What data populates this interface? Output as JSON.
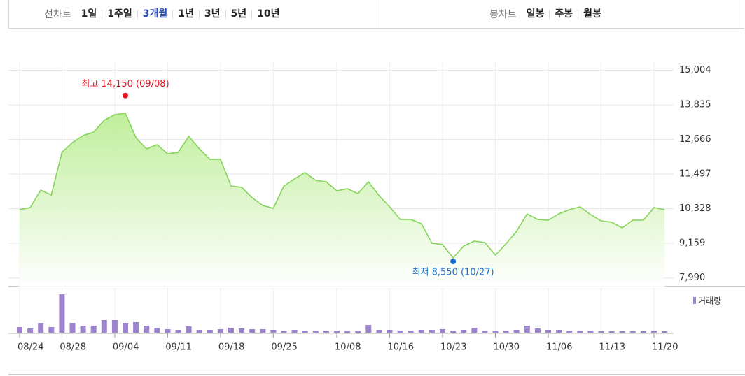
{
  "tabs": {
    "line_label": "선차트",
    "line_periods": [
      "1일",
      "1주일",
      "3개월",
      "1년",
      "3년",
      "5년",
      "10년"
    ],
    "selected_index": 2,
    "candle_label": "봉차트",
    "candle_periods": [
      "일봉",
      "주봉",
      "월봉"
    ]
  },
  "chart_data": {
    "type": "line",
    "color": "#84d45a",
    "fill": "#c9f1a9",
    "x": [
      "08/24",
      null,
      null,
      null,
      "08/28",
      null,
      null,
      null,
      null,
      "09/04",
      null,
      null,
      null,
      null,
      "09/11",
      null,
      null,
      null,
      null,
      "09/18",
      null,
      null,
      null,
      null,
      "09/25",
      null,
      null,
      null,
      null,
      null,
      "10/08",
      null,
      null,
      null,
      null,
      "10/16",
      null,
      null,
      null,
      null,
      "10/23",
      null,
      null,
      null,
      null,
      "10/30",
      null,
      null,
      null,
      null,
      "11/06",
      null,
      null,
      null,
      null,
      "11/13",
      null,
      null,
      null,
      null,
      "11/20",
      null
    ],
    "values": [
      10297,
      10368,
      10958,
      10793,
      12232,
      12562,
      12798,
      12916,
      13318,
      13506,
      13554,
      12728,
      12350,
      12492,
      12185,
      12232,
      12775,
      12350,
      11996,
      11996,
      11099,
      11052,
      10698,
      10438,
      10344,
      11099,
      11335,
      11548,
      11288,
      11241,
      10934,
      11005,
      10840,
      11241,
      10769,
      10391,
      9966,
      9966,
      9825,
      9164,
      9117,
      8668,
      9070,
      9235,
      9188,
      8763,
      9141,
      9565,
      10155,
      9966,
      9943,
      10155,
      10297,
      10391,
      10132,
      9919,
      9872,
      9683,
      9943,
      9943,
      10368,
      10297
    ],
    "ylim": [
      7700,
      15300
    ],
    "yticks": [
      {
        "value": 15004,
        "label": "15,004"
      },
      {
        "value": 13835,
        "label": "13,835"
      },
      {
        "value": 12666,
        "label": "12,666"
      },
      {
        "value": 11497,
        "label": "11,497"
      },
      {
        "value": 10328,
        "label": "10,328"
      },
      {
        "value": 9159,
        "label": "9,159"
      },
      {
        "value": 7990,
        "label": "7,990"
      }
    ],
    "grid": true,
    "annotations": [
      {
        "text": "최고 14,150 (09/08)",
        "value": 14150,
        "color": "#e8141e",
        "extreme": "max"
      },
      {
        "text": "최저 8,550 (10/27)",
        "value": 8550,
        "color": "#1b6fd1",
        "extreme": "min"
      }
    ],
    "volume": {
      "name": "거래량",
      "color": "#9d84cf",
      "values": [
        8,
        6,
        14,
        8,
        55,
        14,
        10,
        10,
        18,
        18,
        14,
        15,
        10,
        7,
        5,
        4,
        9,
        4,
        4,
        5,
        7,
        6,
        5,
        5,
        4,
        3,
        4,
        3,
        3,
        3,
        3,
        3,
        3,
        11,
        4,
        4,
        3,
        3,
        4,
        4,
        5,
        3,
        4,
        7,
        3,
        3,
        3,
        4,
        10,
        6,
        4,
        4,
        3,
        3,
        3,
        2,
        2,
        2,
        2,
        2,
        3,
        2
      ]
    }
  }
}
